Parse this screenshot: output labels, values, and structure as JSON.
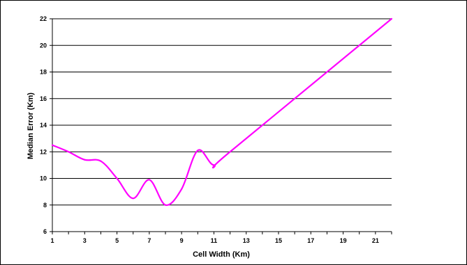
{
  "chart_data": {
    "type": "line",
    "title": "",
    "xlabel": "Cell Width (Km)",
    "ylabel": "Median Error (Km)",
    "xlim": [
      1,
      22
    ],
    "ylim": [
      6,
      22
    ],
    "xticks": [
      1,
      3,
      5,
      7,
      9,
      11,
      13,
      15,
      17,
      19,
      21
    ],
    "yticks": [
      6,
      8,
      10,
      12,
      14,
      16,
      18,
      20,
      22
    ],
    "grid": "horizontal",
    "legend": "none",
    "smooth": true,
    "series": [
      {
        "color": "#ff00ff",
        "x": [
          1,
          2,
          3,
          4,
          5,
          6,
          7,
          8,
          9,
          10,
          11,
          12,
          22
        ],
        "y": [
          12.5,
          12.0,
          11.4,
          11.3,
          10.0,
          8.5,
          9.9,
          8.0,
          9.2,
          12.1,
          11.0,
          12.0,
          22.0
        ]
      }
    ],
    "x_tick_labels": [
      "1",
      "3",
      "5",
      "7",
      "9",
      "11",
      "13",
      "15",
      "17",
      "19",
      "21"
    ],
    "y_tick_labels": [
      "6",
      "8",
      "10",
      "12",
      "14",
      "16",
      "18",
      "20",
      "22"
    ]
  }
}
